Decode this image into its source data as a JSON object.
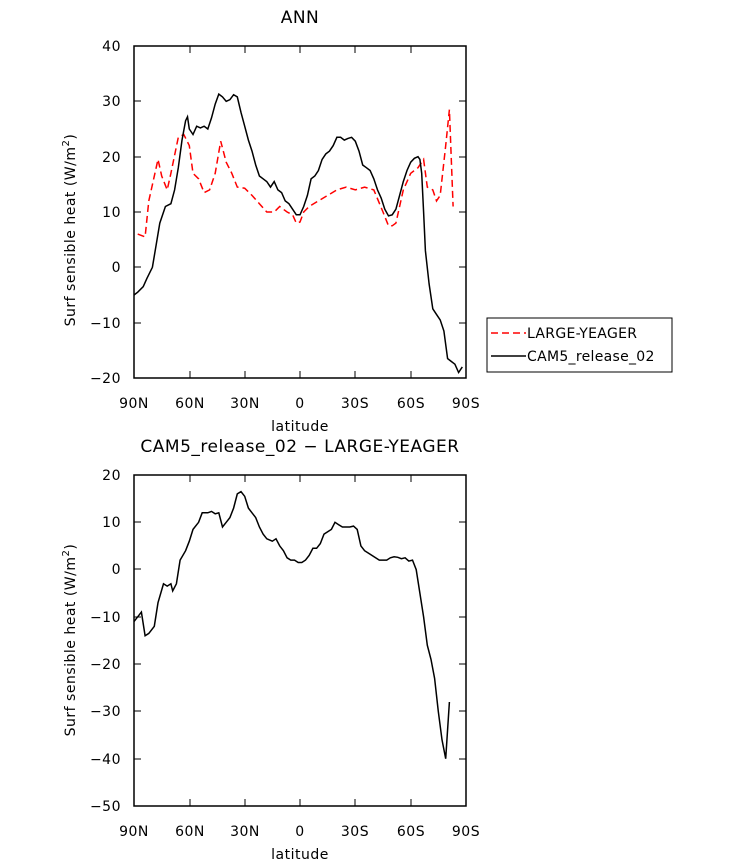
{
  "chart_data": [
    {
      "type": "line",
      "title": "ANN",
      "xlabel": "latitude",
      "ylabel": "Surf sensible heat (W/m²)",
      "ylabel_main": "Surf sensible heat (W/m",
      "ylabel_sup": "2",
      "ylabel_end": ")",
      "xlim": [
        -90,
        90
      ],
      "ylim": [
        -20,
        40
      ],
      "x_ticks": [
        -90,
        -60,
        -30,
        0,
        30,
        60,
        90
      ],
      "x_tick_labels": [
        "90N",
        "60N",
        "30N",
        "0",
        "30S",
        "60S",
        "90S"
      ],
      "y_ticks": [
        -20,
        -10,
        0,
        10,
        20,
        30,
        40
      ],
      "y_tick_labels": [
        "−20",
        "−10",
        "0",
        "10",
        "20",
        "30",
        "40"
      ],
      "series": [
        {
          "name": "LARGE-YEAGER",
          "color": "#ff0000",
          "dash": "dashed",
          "points": [
            [
              -88,
              6
            ],
            [
              -84,
              5.5
            ],
            [
              -82,
              12
            ],
            [
              -77,
              19.5
            ],
            [
              -75,
              16.5
            ],
            [
              -72,
              14
            ],
            [
              -70,
              17
            ],
            [
              -66,
              23.5
            ],
            [
              -63,
              24
            ],
            [
              -60,
              22
            ],
            [
              -58,
              17
            ],
            [
              -55,
              16
            ],
            [
              -52,
              13.5
            ],
            [
              -49,
              14
            ],
            [
              -46,
              17
            ],
            [
              -43,
              22.8
            ],
            [
              -40,
              19
            ],
            [
              -37,
              17
            ],
            [
              -34,
              14.5
            ],
            [
              -30,
              14.3
            ],
            [
              -26,
              13
            ],
            [
              -22,
              11.5
            ],
            [
              -18,
              10
            ],
            [
              -14,
              10
            ],
            [
              -11,
              11
            ],
            [
              -7,
              10
            ],
            [
              -4,
              9.5
            ],
            [
              -2,
              8
            ],
            [
              0,
              8.2
            ],
            [
              2,
              10
            ],
            [
              5,
              11
            ],
            [
              10,
              12
            ],
            [
              15,
              13
            ],
            [
              20,
              14
            ],
            [
              25,
              14.5
            ],
            [
              30,
              14
            ],
            [
              35,
              14.5
            ],
            [
              40,
              14
            ],
            [
              45,
              10
            ],
            [
              48,
              7.5
            ],
            [
              50,
              7.5
            ],
            [
              52,
              8
            ],
            [
              56,
              14
            ],
            [
              60,
              17
            ],
            [
              64,
              18
            ],
            [
              67,
              19.5
            ],
            [
              69,
              14.5
            ],
            [
              72,
              14
            ],
            [
              74,
              12
            ],
            [
              76,
              13
            ],
            [
              79,
              22
            ],
            [
              81,
              28.5
            ],
            [
              83,
              11
            ]
          ]
        },
        {
          "name": "CAM5_release_02",
          "color": "#000000",
          "dash": "solid",
          "points": [
            [
              -90,
              -5
            ],
            [
              -88,
              -4.5
            ],
            [
              -85,
              -3.5
            ],
            [
              -83,
              -2
            ],
            [
              -80,
              0
            ],
            [
              -78,
              4
            ],
            [
              -76,
              8
            ],
            [
              -73,
              11
            ],
            [
              -70,
              11.5
            ],
            [
              -68,
              14
            ],
            [
              -66,
              18
            ],
            [
              -64,
              23
            ],
            [
              -62,
              26.5
            ],
            [
              -61,
              27.2
            ],
            [
              -60,
              25
            ],
            [
              -58,
              24
            ],
            [
              -56,
              25.5
            ],
            [
              -54,
              25.2
            ],
            [
              -52,
              25.5
            ],
            [
              -50,
              25
            ],
            [
              -48,
              27
            ],
            [
              -46,
              29.5
            ],
            [
              -44,
              31.3
            ],
            [
              -42,
              30.8
            ],
            [
              -40,
              30
            ],
            [
              -38,
              30.3
            ],
            [
              -36,
              31.2
            ],
            [
              -34,
              30.8
            ],
            [
              -32,
              28
            ],
            [
              -30,
              25.5
            ],
            [
              -28,
              23
            ],
            [
              -26,
              21
            ],
            [
              -24,
              18.5
            ],
            [
              -22,
              16.5
            ],
            [
              -20,
              16
            ],
            [
              -18,
              15.5
            ],
            [
              -16,
              14.5
            ],
            [
              -14,
              15.5
            ],
            [
              -12,
              14
            ],
            [
              -10,
              13.5
            ],
            [
              -8,
              12
            ],
            [
              -6,
              11.5
            ],
            [
              -4,
              10.5
            ],
            [
              -2,
              9.5
            ],
            [
              0,
              9.5
            ],
            [
              2,
              11
            ],
            [
              4,
              13
            ],
            [
              6,
              16
            ],
            [
              8,
              16.5
            ],
            [
              10,
              17.5
            ],
            [
              12,
              19.5
            ],
            [
              14,
              20.5
            ],
            [
              16,
              21
            ],
            [
              18,
              22
            ],
            [
              20,
              23.5
            ],
            [
              22,
              23.5
            ],
            [
              24,
              23
            ],
            [
              26,
              23.3
            ],
            [
              28,
              23.5
            ],
            [
              30,
              22.8
            ],
            [
              32,
              21
            ],
            [
              34,
              18.5
            ],
            [
              36,
              18
            ],
            [
              38,
              17.5
            ],
            [
              40,
              16
            ],
            [
              42,
              14
            ],
            [
              44,
              12.5
            ],
            [
              46,
              10.5
            ],
            [
              48,
              9.3
            ],
            [
              50,
              9.5
            ],
            [
              52,
              10.5
            ],
            [
              54,
              13
            ],
            [
              56,
              15.5
            ],
            [
              58,
              17.5
            ],
            [
              60,
              19
            ],
            [
              62,
              19.7
            ],
            [
              64,
              20
            ],
            [
              65,
              19.5
            ],
            [
              66,
              17
            ],
            [
              67,
              10
            ],
            [
              68,
              3
            ],
            [
              70,
              -3
            ],
            [
              72,
              -7.5
            ],
            [
              74,
              -8.5
            ],
            [
              76,
              -9.5
            ],
            [
              78,
              -11.5
            ],
            [
              80,
              -16.5
            ],
            [
              82,
              -17
            ],
            [
              84,
              -17.5
            ],
            [
              86,
              -19
            ],
            [
              88,
              -18
            ]
          ]
        }
      ],
      "legend": {
        "position": "right",
        "entries": [
          {
            "label": "LARGE-YEAGER",
            "color": "#ff0000",
            "dash": "dashed"
          },
          {
            "label": "CAM5_release_02",
            "color": "#000000",
            "dash": "solid"
          }
        ]
      }
    },
    {
      "type": "line",
      "title": "CAM5_release_02 − LARGE-YEAGER",
      "xlabel": "latitude",
      "ylabel": "Surf sensible heat (W/m²)",
      "ylabel_main": "Surf sensible heat (W/m",
      "ylabel_sup": "2",
      "ylabel_end": ")",
      "xlim": [
        -90,
        90
      ],
      "ylim": [
        -50,
        20
      ],
      "x_ticks": [
        -90,
        -60,
        -30,
        0,
        30,
        60,
        90
      ],
      "x_tick_labels": [
        "90N",
        "60N",
        "30N",
        "0",
        "30S",
        "60S",
        "90S"
      ],
      "y_ticks": [
        -50,
        -40,
        -30,
        -20,
        -10,
        0,
        10,
        20
      ],
      "y_tick_labels": [
        "−50",
        "−40",
        "−30",
        "−20",
        "−10",
        "0",
        "10",
        "20"
      ],
      "series": [
        {
          "name": "CAM5_release_02 - LARGE-YEAGER",
          "color": "#000000",
          "dash": "solid",
          "points": [
            [
              -90,
              -11
            ],
            [
              -86,
              -9
            ],
            [
              -84,
              -14
            ],
            [
              -82,
              -13.5
            ],
            [
              -79,
              -12
            ],
            [
              -77,
              -7
            ],
            [
              -74,
              -3
            ],
            [
              -72,
              -3.5
            ],
            [
              -70,
              -3
            ],
            [
              -69,
              -4.5
            ],
            [
              -67,
              -3
            ],
            [
              -65,
              2
            ],
            [
              -62,
              4
            ],
            [
              -60,
              6
            ],
            [
              -58,
              8.5
            ],
            [
              -55,
              10
            ],
            [
              -53,
              12
            ],
            [
              -50,
              12
            ],
            [
              -48,
              12.3
            ],
            [
              -46,
              11.8
            ],
            [
              -44,
              12
            ],
            [
              -42,
              9
            ],
            [
              -40,
              10
            ],
            [
              -38,
              11
            ],
            [
              -36,
              13
            ],
            [
              -34,
              16
            ],
            [
              -32,
              16.5
            ],
            [
              -30,
              15.5
            ],
            [
              -28,
              13
            ],
            [
              -26,
              12
            ],
            [
              -24,
              11
            ],
            [
              -22,
              9
            ],
            [
              -20,
              7.5
            ],
            [
              -18,
              6.5
            ],
            [
              -15,
              6
            ],
            [
              -13,
              6.5
            ],
            [
              -11,
              5
            ],
            [
              -9,
              4
            ],
            [
              -7,
              2.5
            ],
            [
              -5,
              2
            ],
            [
              -3,
              2
            ],
            [
              -1,
              1.5
            ],
            [
              1,
              1.5
            ],
            [
              3,
              2
            ],
            [
              5,
              3
            ],
            [
              7,
              4.5
            ],
            [
              9,
              4.5
            ],
            [
              11,
              5.5
            ],
            [
              13,
              7.5
            ],
            [
              15,
              8
            ],
            [
              17,
              8.5
            ],
            [
              19,
              10
            ],
            [
              21,
              9.5
            ],
            [
              23,
              9
            ],
            [
              25,
              9
            ],
            [
              27,
              9
            ],
            [
              29,
              9.2
            ],
            [
              31,
              8.5
            ],
            [
              33,
              5
            ],
            [
              35,
              4
            ],
            [
              37,
              3.5
            ],
            [
              39,
              3
            ],
            [
              41,
              2.5
            ],
            [
              43,
              2
            ],
            [
              45,
              2
            ],
            [
              47,
              2
            ],
            [
              49,
              2.5
            ],
            [
              51,
              2.7
            ],
            [
              53,
              2.6
            ],
            [
              55,
              2.3
            ],
            [
              57,
              2.5
            ],
            [
              59,
              1.8
            ],
            [
              61,
              2
            ],
            [
              63,
              0
            ],
            [
              65,
              -5
            ],
            [
              67,
              -10
            ],
            [
              69,
              -16
            ],
            [
              71,
              -19
            ],
            [
              73,
              -23
            ],
            [
              75,
              -30
            ],
            [
              77,
              -36
            ],
            [
              79,
              -40
            ],
            [
              81,
              -28
            ]
          ]
        }
      ]
    }
  ]
}
